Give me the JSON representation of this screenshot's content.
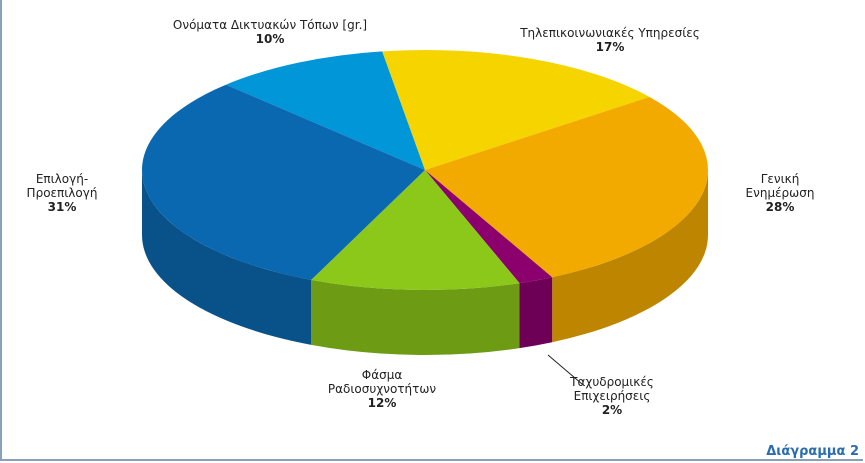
{
  "chart_data": {
    "type": "pie",
    "categories": [
      "Ονόματα Δικτυακών Τόπων [gr.]",
      "Τηλεπικοινωνιακές Υπηρεσίες",
      "Γενική Ενημέρωση",
      "Ταχυδρομικές\nΕπιχειρήσεις",
      "Φάσμα\nΡαδιοσυχνοτήτων",
      "Επιλογή-\nΠροεπιλογή"
    ],
    "values": [
      10,
      17,
      28,
      2,
      12,
      31
    ],
    "value_labels": [
      "10%",
      "17%",
      "28%",
      "2%",
      "12%",
      "31%"
    ],
    "colors": [
      "#0096d8",
      "#f5d400",
      "#f2aa00",
      "#8c006e",
      "#8cc81a",
      "#0a68b0"
    ],
    "caption": "Διάγραμμα 2"
  }
}
